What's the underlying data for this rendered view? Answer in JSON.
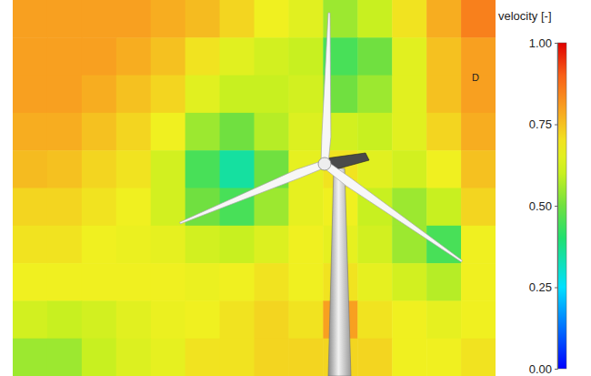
{
  "chart_data": {
    "type": "heatmap",
    "tick_labels": false,
    "annotations": [
      "D"
    ],
    "cells": [
      [
        0.8,
        0.8,
        0.8,
        0.8,
        0.78,
        0.76,
        0.72,
        0.68,
        0.65,
        0.55,
        0.6,
        0.7,
        0.78,
        0.85
      ],
      [
        0.8,
        0.8,
        0.8,
        0.78,
        0.75,
        0.7,
        0.65,
        0.62,
        0.6,
        0.45,
        0.5,
        0.65,
        0.75,
        0.8
      ],
      [
        0.8,
        0.8,
        0.78,
        0.75,
        0.72,
        0.65,
        0.6,
        0.6,
        0.62,
        0.5,
        0.55,
        0.65,
        0.75,
        0.8
      ],
      [
        0.78,
        0.78,
        0.75,
        0.72,
        0.68,
        0.55,
        0.5,
        0.58,
        0.64,
        0.62,
        0.6,
        0.65,
        0.72,
        0.78
      ],
      [
        0.76,
        0.75,
        0.72,
        0.7,
        0.62,
        0.45,
        0.35,
        0.5,
        0.66,
        0.7,
        0.65,
        0.62,
        0.68,
        0.75
      ],
      [
        0.72,
        0.72,
        0.7,
        0.68,
        0.62,
        0.5,
        0.45,
        0.55,
        0.66,
        0.68,
        0.6,
        0.55,
        0.6,
        0.72
      ],
      [
        0.7,
        0.7,
        0.68,
        0.67,
        0.66,
        0.62,
        0.6,
        0.64,
        0.68,
        0.66,
        0.62,
        0.55,
        0.45,
        0.68
      ],
      [
        0.68,
        0.68,
        0.68,
        0.68,
        0.68,
        0.67,
        0.68,
        0.7,
        0.68,
        0.7,
        0.66,
        0.62,
        0.58,
        0.68
      ],
      [
        0.62,
        0.6,
        0.62,
        0.65,
        0.67,
        0.68,
        0.7,
        0.72,
        0.7,
        0.8,
        0.7,
        0.68,
        0.66,
        0.68
      ],
      [
        0.55,
        0.55,
        0.6,
        0.64,
        0.66,
        0.7,
        0.7,
        0.72,
        0.72,
        0.72,
        0.72,
        0.68,
        0.68,
        0.7
      ]
    ],
    "colorbar": {
      "label": "velocity [-]",
      "range": [
        0,
        1
      ],
      "ticks": [
        {
          "value": 1,
          "label": "1.00"
        },
        {
          "value": 0.75,
          "label": "0.75"
        },
        {
          "value": 0.5,
          "label": "0.50"
        },
        {
          "value": 0.25,
          "label": "0.25"
        },
        {
          "value": 0,
          "label": "0.00"
        }
      ]
    }
  }
}
